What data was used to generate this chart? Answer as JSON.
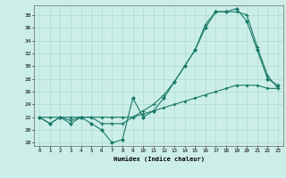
{
  "xlabel": "Humidex (Indice chaleur)",
  "background_color": "#cceee8",
  "grid_color": "#aaddcc",
  "line_color": "#1a7a6a",
  "xlim": [
    -0.5,
    23.5
  ],
  "ylim": [
    17.5,
    39.5
  ],
  "yticks": [
    18,
    20,
    22,
    24,
    26,
    28,
    30,
    32,
    34,
    36,
    38
  ],
  "xticks": [
    0,
    1,
    2,
    3,
    4,
    5,
    6,
    7,
    8,
    9,
    10,
    11,
    12,
    13,
    14,
    15,
    16,
    17,
    18,
    19,
    20,
    21,
    22,
    23
  ],
  "line1_x": [
    0,
    1,
    2,
    3,
    4,
    5,
    6,
    7,
    8,
    9,
    10,
    11,
    12,
    13,
    14,
    15,
    16,
    17,
    18,
    19,
    20,
    21,
    22,
    23
  ],
  "line1_y": [
    22,
    21,
    22,
    21,
    22,
    21,
    20,
    18,
    18.5,
    25,
    22,
    23,
    25,
    27.5,
    30,
    32.5,
    36,
    38.5,
    38.5,
    39,
    37,
    32.5,
    28,
    27
  ],
  "line2_x": [
    0,
    1,
    2,
    3,
    4,
    5,
    6,
    7,
    8,
    9,
    10,
    11,
    12,
    13,
    14,
    15,
    16,
    17,
    18,
    19,
    20,
    21,
    22,
    23
  ],
  "line2_y": [
    22,
    21,
    22,
    21.5,
    22,
    22,
    21,
    21,
    21,
    22,
    23,
    24,
    25.5,
    27.5,
    30,
    32.5,
    36.5,
    38.5,
    38.5,
    38.5,
    38,
    33,
    28.5,
    26.5
  ],
  "line3_x": [
    0,
    1,
    2,
    3,
    4,
    5,
    6,
    7,
    8,
    9,
    10,
    11,
    12,
    13,
    14,
    15,
    16,
    17,
    18,
    19,
    20,
    21,
    22,
    23
  ],
  "line3_y": [
    22,
    22,
    22,
    22,
    22,
    22,
    22,
    22,
    22,
    22,
    22.5,
    23,
    23.5,
    24,
    24.5,
    25,
    25.5,
    26,
    26.5,
    27,
    27,
    27,
    26.5,
    26.5
  ]
}
